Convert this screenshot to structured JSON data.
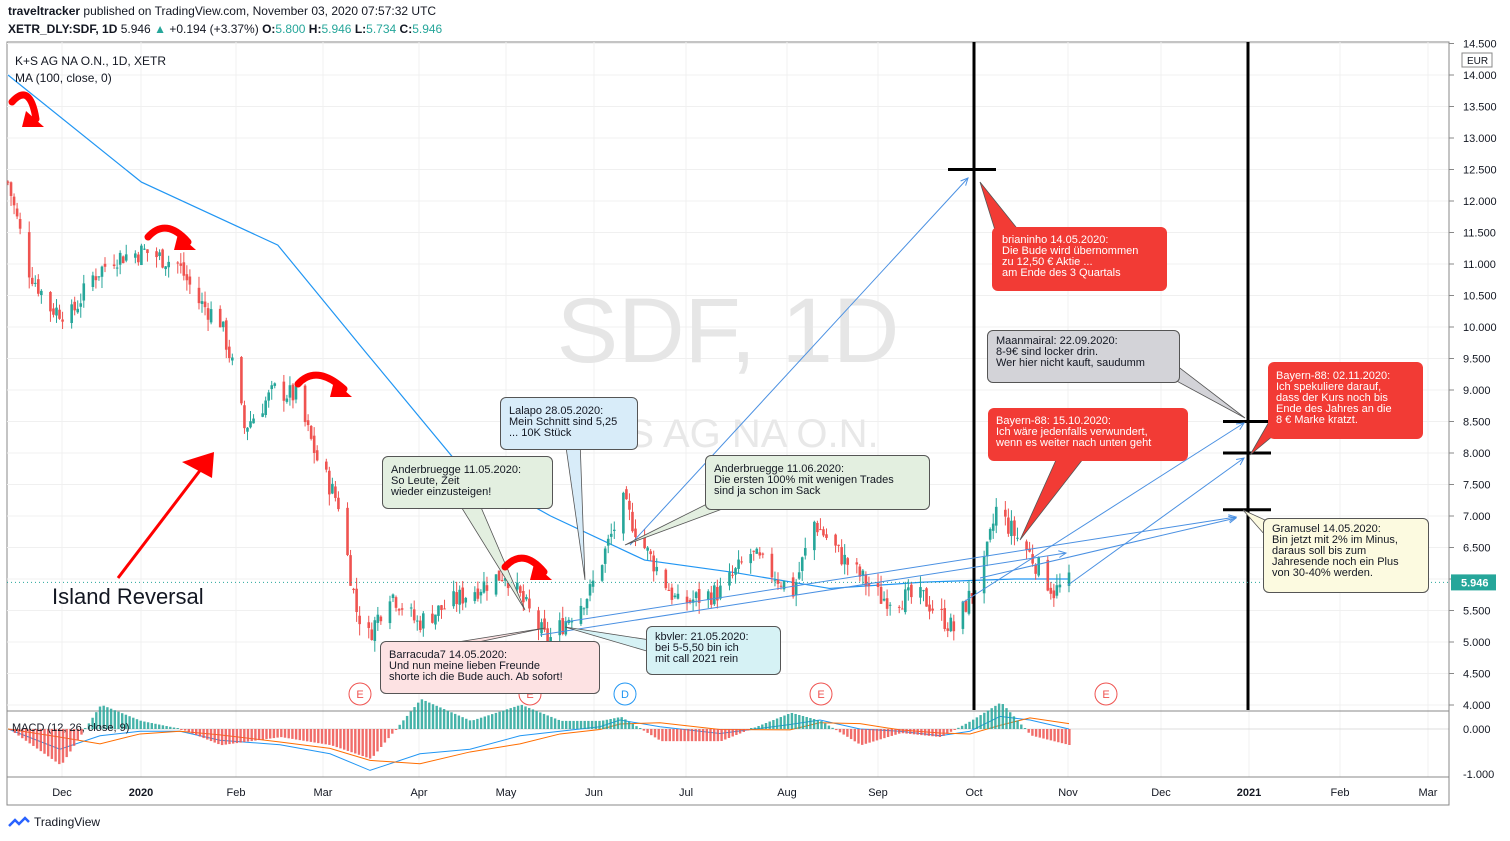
{
  "header": {
    "publisher": "traveltracker",
    "published_text": "published on TradingView.com, November 03, 2020 07:57:32 UTC",
    "symbol": "XETR_DLY:SDF, 1D",
    "last": "5.946",
    "change": "+0.194 (+3.37%)",
    "o_label": "O:",
    "o": "5.800",
    "h_label": "H:",
    "h": "5.946",
    "l_label": "L:",
    "l": "5.734",
    "c_label": "C:",
    "c": "5.946"
  },
  "legend": {
    "title": "K+S AG NA O.N., 1D, XETR",
    "ma": "MA (100, close, 0)",
    "macd": "MACD (12, 26, close, 9)"
  },
  "watermark": {
    "symbol": "SDF, 1D",
    "name": "K+S AG NA O.N."
  },
  "annotations": {
    "island_reversal": "Island Reversal"
  },
  "notes": [
    {
      "id": "brianinho",
      "color": "red",
      "text": "brianinho 14.05.2020:\nDie Bude wird übernommen\nzu 12,50 € Aktie ...\nam Ende des 3 Quartals"
    },
    {
      "id": "maanmairal",
      "color": "grey",
      "text": "Maanmairal:  22.09.2020:\n8-9€ sind locker drin.\nWer hier nicht kauft, saudumm"
    },
    {
      "id": "bayern1510",
      "color": "red",
      "text": "Bayern-88: 15.10.2020:\nIch wäre jedenfalls verwundert,\nwenn es weiter nach unten geht"
    },
    {
      "id": "bayern0211",
      "color": "red",
      "text": "Bayern-88: 02.11.2020:\nIch spekuliere darauf,\ndass der Kurs noch bis\nEnde des Jahres an die\n8 € Marke kratzt."
    },
    {
      "id": "gramusel",
      "color": "yellow",
      "text": "Gramusel 14.05.2020:\nBin jetzt mit 2% im Minus,\ndaraus soll bis zum\nJahresende noch ein Plus\nvon 30-40% werden."
    },
    {
      "id": "lalapo",
      "color": "blue",
      "text": "Lalapo 28.05.2020:\nMein Schnitt sind 5,25\n... 10K Stück"
    },
    {
      "id": "anderbruegge1105",
      "color": "green",
      "text": "Anderbruegge 11.05.2020:\nSo Leute, Zeit\nwieder einzusteigen!"
    },
    {
      "id": "anderbruegge1106",
      "color": "green",
      "text": "Anderbruegge 11.06.2020:\nDie ersten 100% mit wenigen Trades\nsind ja schon im Sack"
    },
    {
      "id": "barracuda",
      "color": "pink",
      "text": "Barracuda7 14.05.2020:\nUnd nun meine lieben Freunde\nshorte ich die Bude auch. Ab sofort!"
    },
    {
      "id": "kbvler",
      "color": "cyan",
      "text": "kbvler:  21.05.2020:\nbei 5-5,50 bin ich\nmit call 2021 rein"
    }
  ],
  "events": [
    "E",
    "E",
    "D",
    "E",
    "E"
  ],
  "branding": "TradingView",
  "colors": {
    "up": "#26a69a",
    "down": "#ef5350",
    "ma": "#2196f3",
    "signal": "#ff6d00",
    "note_red": "#f23b35",
    "arrow_red": "#ff0000"
  },
  "chart_data": [
    {
      "type": "candlestick",
      "title": "K+S AG NA O.N., 1D, XETR",
      "currency": "EUR",
      "y_ticks": [
        "4.000",
        "4.500",
        "5.000",
        "5.500",
        "6.000",
        "6.500",
        "7.000",
        "7.500",
        "8.000",
        "8.500",
        "9.000",
        "9.500",
        "10.000",
        "10.500",
        "11.000",
        "11.500",
        "12.000",
        "12.500",
        "13.000",
        "13.500",
        "14.000",
        "14.500"
      ],
      "ylim": [
        4.0,
        14.5
      ],
      "x_ticks": [
        "Dec",
        "2020",
        "Feb",
        "Mar",
        "Apr",
        "May",
        "Jun",
        "Jul",
        "Aug",
        "Sep",
        "Oct",
        "Nov",
        "Dec",
        "2021",
        "Feb",
        "Mar"
      ],
      "last_price_label": "5.946",
      "approx_close_path": [
        {
          "d": "2019-11-18",
          "c": 12.3
        },
        {
          "d": "2019-11-25",
          "c": 10.9
        },
        {
          "d": "2019-12-02",
          "c": 10.3
        },
        {
          "d": "2019-12-09",
          "c": 10.2
        },
        {
          "d": "2019-12-16",
          "c": 10.8
        },
        {
          "d": "2019-12-23",
          "c": 11.1
        },
        {
          "d": "2020-01-02",
          "c": 11.2
        },
        {
          "d": "2020-01-13",
          "c": 11.0
        },
        {
          "d": "2020-01-20",
          "c": 10.4
        },
        {
          "d": "2020-01-27",
          "c": 10.1
        },
        {
          "d": "2020-01-31",
          "c": 9.4
        },
        {
          "d": "2020-02-04",
          "c": 8.4
        },
        {
          "d": "2020-02-14",
          "c": 9.0
        },
        {
          "d": "2020-02-21",
          "c": 8.9
        },
        {
          "d": "2020-02-28",
          "c": 7.9
        },
        {
          "d": "2020-03-06",
          "c": 7.2
        },
        {
          "d": "2020-03-12",
          "c": 5.5
        },
        {
          "d": "2020-03-16",
          "c": 5.1
        },
        {
          "d": "2020-03-23",
          "c": 5.8
        },
        {
          "d": "2020-04-01",
          "c": 5.3
        },
        {
          "d": "2020-04-15",
          "c": 5.7
        },
        {
          "d": "2020-04-30",
          "c": 6.1
        },
        {
          "d": "2020-05-14",
          "c": 5.0
        },
        {
          "d": "2020-05-28",
          "c": 5.8
        },
        {
          "d": "2020-06-08",
          "c": 7.2
        },
        {
          "d": "2020-06-15",
          "c": 6.5
        },
        {
          "d": "2020-06-26",
          "c": 5.6
        },
        {
          "d": "2020-07-10",
          "c": 5.8
        },
        {
          "d": "2020-07-20",
          "c": 6.4
        },
        {
          "d": "2020-08-03",
          "c": 5.8
        },
        {
          "d": "2020-08-10",
          "c": 6.9
        },
        {
          "d": "2020-08-20",
          "c": 6.3
        },
        {
          "d": "2020-09-01",
          "c": 5.7
        },
        {
          "d": "2020-09-15",
          "c": 5.7
        },
        {
          "d": "2020-09-25",
          "c": 5.2
        },
        {
          "d": "2020-10-05",
          "c": 6.2
        },
        {
          "d": "2020-10-09",
          "c": 7.1
        },
        {
          "d": "2020-10-20",
          "c": 6.4
        },
        {
          "d": "2020-10-28",
          "c": 5.8
        },
        {
          "d": "2020-11-02",
          "c": 5.946
        }
      ],
      "ma_series": {
        "name": "MA (100, close, 0)",
        "points": [
          {
            "d": "2019-11-18",
            "v": 14.0
          },
          {
            "d": "2020-01-01",
            "v": 12.3
          },
          {
            "d": "2020-02-15",
            "v": 11.3
          },
          {
            "d": "2020-03-15",
            "v": 9.6
          },
          {
            "d": "2020-04-15",
            "v": 7.8
          },
          {
            "d": "2020-05-15",
            "v": 7.0
          },
          {
            "d": "2020-06-15",
            "v": 6.3
          },
          {
            "d": "2020-07-15",
            "v": 6.1
          },
          {
            "d": "2020-08-15",
            "v": 5.85
          },
          {
            "d": "2020-09-15",
            "v": 5.95
          },
          {
            "d": "2020-10-15",
            "v": 6.0
          },
          {
            "d": "2020-11-02",
            "v": 6.0
          }
        ]
      },
      "drawings": [
        {
          "label": "vertical line",
          "d": "2020-09-30"
        },
        {
          "label": "vertical line",
          "d": "2020-12-31"
        },
        {
          "label": "price mark",
          "v": 12.5
        },
        {
          "label": "price mark",
          "v": 8.5
        },
        {
          "label": "price mark",
          "v": 8.0
        },
        {
          "label": "price mark",
          "v": 7.1
        }
      ]
    },
    {
      "type": "bar",
      "title": "MACD (12, 26, close, 9)",
      "y_ticks": [
        "0.000",
        "-1.000"
      ],
      "ylim": [
        -1.0,
        0.0
      ]
    }
  ]
}
